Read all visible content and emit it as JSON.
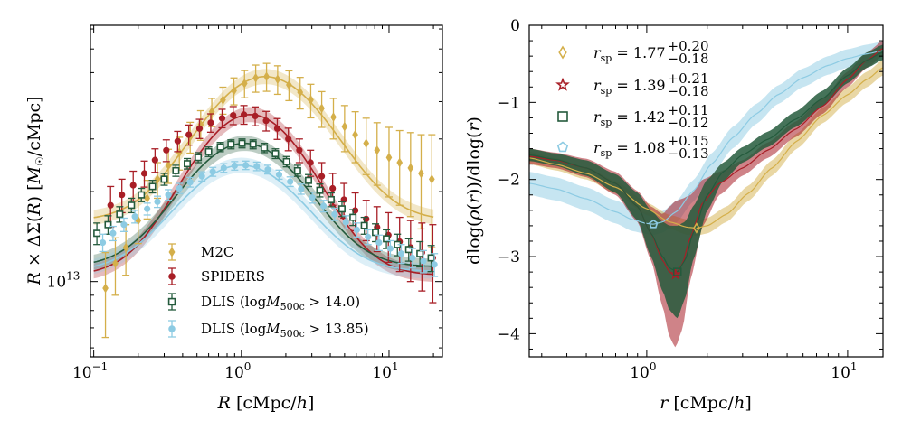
{
  "chart_data": [
    {
      "type": "scatter",
      "panel": "left",
      "xscale": "log",
      "yscale": "log",
      "xlim": [
        0.095,
        23
      ],
      "ylim": [
        5600000000000.0,
        72000000000000.0
      ],
      "xlabel": "R [cMpc/h]",
      "ylabel": "R × ΔΣ(R) [M☉/cMpc]",
      "xticks": [
        {
          "value": 0.1,
          "base": "10",
          "exp": "−1"
        },
        {
          "value": 1,
          "base": "10",
          "exp": "0"
        },
        {
          "value": 10,
          "base": "10",
          "exp": "1"
        }
      ],
      "yticks": [
        {
          "value": 10000000000000.0,
          "base": "10",
          "exp": "13"
        }
      ],
      "legend_position": "lower-center",
      "series": [
        {
          "name": "M2C",
          "label": "M2C",
          "color": "#d4af4a",
          "marker": "diamond",
          "x": [
            0.12,
            0.14,
            0.165,
            0.2,
            0.23,
            0.27,
            0.32,
            0.38,
            0.45,
            0.53,
            0.63,
            0.75,
            0.89,
            1.05,
            1.25,
            1.48,
            1.76,
            2.1,
            2.5,
            2.95,
            3.5,
            4.2,
            5.0,
            5.9,
            7.0,
            8.3,
            10.0,
            11.8,
            14.0,
            16.5,
            19.5
          ],
          "y": [
            9500000000000.0,
            11500000000000.0,
            13000000000000.0,
            16000000000000.0,
            19000000000000.0,
            22000000000000.0,
            24500000000000.0,
            27000000000000.0,
            30500000000000.0,
            33500000000000.0,
            37000000000000.0,
            40500000000000.0,
            43500000000000.0,
            46000000000000.0,
            48000000000000.0,
            48500000000000.0,
            47500000000000.0,
            45500000000000.0,
            43000000000000.0,
            40500000000000.0,
            38000000000000.0,
            35500000000000.0,
            33000000000000.0,
            31000000000000.0,
            29000000000000.0,
            27500000000000.0,
            26000000000000.0,
            25000000000000.0,
            24000000000000.0,
            23000000000000.0,
            22000000000000.0
          ],
          "err": [
            3000000000000.0,
            2500000000000.0,
            2500000000000.0,
            2600000000000.0,
            2800000000000.0,
            3000000000000.0,
            3200000000000.0,
            3400000000000.0,
            3600000000000.0,
            3800000000000.0,
            4000000000000.0,
            4200000000000.0,
            4500000000000.0,
            4800000000000.0,
            5000000000000.0,
            5200000000000.0,
            5200000000000.0,
            5200000000000.0,
            5200000000000.0,
            5200000000000.0,
            5200000000000.0,
            5500000000000.0,
            5800000000000.0,
            6000000000000.0,
            6200000000000.0,
            6500000000000.0,
            6800000000000.0,
            7000000000000.0,
            7500000000000.0,
            8000000000000.0,
            9000000000000.0
          ],
          "model": {
            "amp": 48500000000000.0,
            "peak": 1.45,
            "width": 1.45,
            "floor": 16000000000000.0
          }
        },
        {
          "name": "SPIDERS",
          "label": "SPIDERS",
          "color": "#a81e26",
          "marker": "circle",
          "x": [
            0.13,
            0.155,
            0.185,
            0.22,
            0.26,
            0.31,
            0.37,
            0.44,
            0.52,
            0.62,
            0.74,
            0.88,
            1.04,
            1.24,
            1.47,
            1.75,
            2.08,
            2.47,
            2.94,
            3.5,
            4.15,
            4.95,
            5.9,
            7.0,
            8.3,
            9.9,
            11.8,
            14.0,
            16.7,
            19.8
          ],
          "y": [
            18000000000000.0,
            19500000000000.0,
            21000000000000.0,
            23000000000000.0,
            25500000000000.0,
            27500000000000.0,
            29500000000000.0,
            31000000000000.0,
            32500000000000.0,
            34000000000000.0,
            35200000000000.0,
            36000000000000.0,
            36200000000000.0,
            35800000000000.0,
            34500000000000.0,
            32500000000000.0,
            30000000000000.0,
            27500000000000.0,
            25000000000000.0,
            22500000000000.0,
            20500000000000.0,
            18800000000000.0,
            17300000000000.0,
            16200000000000.0,
            15200000000000.0,
            14300000000000.0,
            13600000000000.0,
            13000000000000.0,
            12500000000000.0,
            12000000000000.0
          ],
          "err": [
            2800000000000.0,
            2500000000000.0,
            2400000000000.0,
            2300000000000.0,
            2300000000000.0,
            2300000000000.0,
            2300000000000.0,
            2400000000000.0,
            2400000000000.0,
            2400000000000.0,
            2500000000000.0,
            2500000000000.0,
            2600000000000.0,
            2600000000000.0,
            2600000000000.0,
            2600000000000.0,
            2600000000000.0,
            2500000000000.0,
            2500000000000.0,
            2500000000000.0,
            2500000000000.0,
            2500000000000.0,
            2500000000000.0,
            2500000000000.0,
            2600000000000.0,
            2700000000000.0,
            2800000000000.0,
            3000000000000.0,
            3200000000000.0,
            3500000000000.0
          ],
          "model": {
            "amp": 36200000000000.0,
            "peak": 1.15,
            "width": 1.3,
            "floor": 10500000000000.0
          }
        },
        {
          "name": "DLIS (logM500c > 14.0)",
          "label": "DLIS (log",
          "label_m": "M",
          "label_sub": "500c",
          "label_tail": " > 14.0)",
          "color": "#245a3c",
          "marker": "square",
          "x": [
            0.105,
            0.125,
            0.15,
            0.18,
            0.21,
            0.25,
            0.3,
            0.36,
            0.43,
            0.51,
            0.6,
            0.72,
            0.85,
            1.01,
            1.2,
            1.43,
            1.7,
            2.02,
            2.4,
            2.85,
            3.4,
            4.05,
            4.8,
            5.7,
            6.8,
            8.1,
            9.6,
            11.4,
            13.6,
            16.2,
            19.3
          ],
          "y": [
            14500000000000.0,
            15500000000000.0,
            16800000000000.0,
            18000000000000.0,
            19500000000000.0,
            20800000000000.0,
            22000000000000.0,
            23500000000000.0,
            24800000000000.0,
            26000000000000.0,
            27200000000000.0,
            28200000000000.0,
            28800000000000.0,
            29000000000000.0,
            28800000000000.0,
            28000000000000.0,
            26800000000000.0,
            25200000000000.0,
            23500000000000.0,
            21800000000000.0,
            20200000000000.0,
            18800000000000.0,
            17500000000000.0,
            16400000000000.0,
            15400000000000.0,
            14600000000000.0,
            13900000000000.0,
            13300000000000.0,
            12800000000000.0,
            12400000000000.0,
            12000000000000.0
          ],
          "err": [
            1200000000000.0,
            1100000000000.0,
            1000000000000.0,
            1000000000000.0,
            1000000000000.0,
            1000000000000.0,
            1000000000000.0,
            1000000000000.0,
            1000000000000.0,
            1000000000000.0,
            1000000000000.0,
            1000000000000.0,
            1000000000000.0,
            1000000000000.0,
            1000000000000.0,
            1000000000000.0,
            1000000000000.0,
            1000000000000.0,
            1000000000000.0,
            1000000000000.0,
            1000000000000.0,
            1000000000000.0,
            1000000000000.0,
            1000000000000.0,
            1000000000000.0,
            1000000000000.0,
            1000000000000.0,
            1100000000000.0,
            1100000000000.0,
            1200000000000.0,
            1200000000000.0
          ],
          "model": {
            "amp": 29000000000000.0,
            "peak": 1.05,
            "width": 1.35,
            "floor": 11200000000000.0
          }
        },
        {
          "name": "DLIS (logM500c > 13.85)",
          "label": "DLIS (log",
          "label_m": "M",
          "label_sub": "500c",
          "label_tail": " > 13.85)",
          "color": "#8dcbe3",
          "marker": "circle",
          "x": [
            0.115,
            0.135,
            0.16,
            0.19,
            0.23,
            0.27,
            0.32,
            0.38,
            0.45,
            0.54,
            0.64,
            0.76,
            0.9,
            1.07,
            1.27,
            1.51,
            1.8,
            2.14,
            2.54,
            3.02,
            3.6,
            4.28,
            5.1,
            6.05,
            7.2,
            8.55,
            10.2,
            12.1,
            14.4,
            17.1,
            20.3
          ],
          "y": [
            13500000000000.0,
            14500000000000.0,
            15500000000000.0,
            16500000000000.0,
            17500000000000.0,
            18500000000000.0,
            19500000000000.0,
            20500000000000.0,
            21500000000000.0,
            22500000000000.0,
            23300000000000.0,
            24000000000000.0,
            24400000000000.0,
            24500000000000.0,
            24300000000000.0,
            23700000000000.0,
            22800000000000.0,
            21600000000000.0,
            20400000000000.0,
            19100000000000.0,
            17900000000000.0,
            16800000000000.0,
            15800000000000.0,
            14900000000000.0,
            14100000000000.0,
            13500000000000.0,
            12900000000000.0,
            12400000000000.0,
            12000000000000.0,
            11700000000000.0,
            11400000000000.0
          ],
          "err": [
            900000000000.0,
            800000000000.0,
            800000000000.0,
            800000000000.0,
            800000000000.0,
            800000000000.0,
            800000000000.0,
            800000000000.0,
            800000000000.0,
            800000000000.0,
            800000000000.0,
            800000000000.0,
            800000000000.0,
            800000000000.0,
            800000000000.0,
            800000000000.0,
            800000000000.0,
            800000000000.0,
            800000000000.0,
            800000000000.0,
            800000000000.0,
            800000000000.0,
            800000000000.0,
            800000000000.0,
            800000000000.0,
            800000000000.0,
            800000000000.0,
            900000000000.0,
            900000000000.0,
            1000000000000.0,
            1000000000000.0
          ],
          "model": {
            "amp": 24500000000000.0,
            "peak": 1.0,
            "width": 1.4,
            "floor": 10800000000000.0
          }
        }
      ]
    },
    {
      "type": "line",
      "panel": "right",
      "xscale": "log",
      "yscale": "linear",
      "xlim": [
        0.26,
        15
      ],
      "ylim": [
        -4.3,
        0
      ],
      "xlabel": "r [cMpc/h]",
      "ylabel": "dlog(ρ(r))/dlog(r)",
      "xticks": [
        {
          "value": 1,
          "base": "10",
          "exp": "0"
        },
        {
          "value": 10,
          "base": "10",
          "exp": "1"
        }
      ],
      "yticks": [
        {
          "value": 0,
          "label": "0"
        },
        {
          "value": -1,
          "label": "−1"
        },
        {
          "value": -2,
          "label": "−2"
        },
        {
          "value": -3,
          "label": "−3"
        },
        {
          "value": -4,
          "label": "−4"
        }
      ],
      "legend_position": "upper-left",
      "series": [
        {
          "name": "M2C",
          "color": "#d4af4a",
          "marker": "diamond",
          "r_sp": 1.77,
          "err_plus": "+0.20",
          "err_minus": "−0.18",
          "r_sp_label": "= 1.77",
          "x": [
            0.26,
            0.35,
            0.5,
            0.7,
            1.0,
            1.3,
            1.6,
            1.77,
            2.0,
            2.5,
            3.2,
            4.2,
            5.6,
            7.5,
            10,
            12.5,
            15
          ],
          "y": [
            -1.72,
            -1.8,
            -1.92,
            -2.1,
            -2.38,
            -2.55,
            -2.62,
            -2.63,
            -2.6,
            -2.45,
            -2.18,
            -1.85,
            -1.5,
            -1.17,
            -0.9,
            -0.7,
            -0.55
          ],
          "band": [
            0.08,
            0.08,
            0.08,
            0.08,
            0.08,
            0.09,
            0.1,
            0.1,
            0.1,
            0.1,
            0.1,
            0.1,
            0.1,
            0.1,
            0.1,
            0.1,
            0.1
          ]
        },
        {
          "name": "SPIDERS",
          "color": "#a81e26",
          "marker": "star",
          "r_sp": 1.39,
          "err_plus": "+0.21",
          "err_minus": "−0.18",
          "r_sp_label": "= 1.39",
          "x": [
            0.26,
            0.35,
            0.5,
            0.7,
            0.9,
            1.05,
            1.2,
            1.3,
            1.39,
            1.5,
            1.65,
            1.9,
            2.3,
            3.0,
            4.0,
            5.5,
            7.5,
            10,
            12.5,
            15
          ],
          "y": [
            -1.7,
            -1.75,
            -1.85,
            -2.05,
            -2.35,
            -2.7,
            -3.05,
            -3.2,
            -3.23,
            -3.1,
            -2.75,
            -2.3,
            -2.05,
            -1.85,
            -1.62,
            -1.35,
            -1.05,
            -0.7,
            -0.45,
            -0.3
          ],
          "band": [
            0.1,
            0.1,
            0.12,
            0.15,
            0.2,
            0.35,
            0.6,
            0.85,
            0.95,
            0.85,
            0.55,
            0.3,
            0.15,
            0.1,
            0.1,
            0.1,
            0.1,
            0.1,
            0.1,
            0.1
          ]
        },
        {
          "name": "DLIS (logM500c > 14.0)",
          "color": "#245a3c",
          "marker": "square",
          "r_sp": 1.42,
          "err_plus": "+0.11",
          "err_minus": "−0.12",
          "r_sp_label": "= 1.42",
          "x": [
            0.26,
            0.35,
            0.5,
            0.7,
            0.9,
            1.05,
            1.2,
            1.3,
            1.42,
            1.55,
            1.7,
            2.0,
            2.4,
            3.0,
            4.0,
            5.5,
            7.5,
            10,
            12.5,
            15
          ],
          "y": [
            -1.68,
            -1.74,
            -1.85,
            -2.05,
            -2.35,
            -2.7,
            -3.0,
            -3.15,
            -3.2,
            -3.05,
            -2.7,
            -2.2,
            -1.9,
            -1.68,
            -1.48,
            -1.22,
            -0.95,
            -0.65,
            -0.45,
            -0.35
          ],
          "band": [
            0.08,
            0.08,
            0.1,
            0.12,
            0.18,
            0.3,
            0.45,
            0.55,
            0.6,
            0.5,
            0.35,
            0.2,
            0.12,
            0.1,
            0.1,
            0.1,
            0.1,
            0.1,
            0.1,
            0.1
          ]
        },
        {
          "name": "DLIS (logM500c > 13.85)",
          "color": "#8dcbe3",
          "marker": "pentagon",
          "r_sp": 1.08,
          "err_plus": "+0.15",
          "err_minus": "−0.13",
          "r_sp_label": "= 1.08",
          "x": [
            0.26,
            0.35,
            0.5,
            0.7,
            0.85,
            1.0,
            1.08,
            1.2,
            1.4,
            1.7,
            2.1,
            2.7,
            3.5,
            4.5,
            6.0,
            8.0,
            10,
            12.5,
            15
          ],
          "y": [
            -2.05,
            -2.12,
            -2.25,
            -2.42,
            -2.52,
            -2.57,
            -2.58,
            -2.55,
            -2.42,
            -2.15,
            -1.8,
            -1.45,
            -1.15,
            -0.9,
            -0.68,
            -0.52,
            -0.43,
            -0.37,
            -0.33
          ],
          "band": [
            0.15,
            0.15,
            0.15,
            0.15,
            0.15,
            0.14,
            0.14,
            0.14,
            0.14,
            0.14,
            0.14,
            0.14,
            0.13,
            0.12,
            0.12,
            0.12,
            0.12,
            0.12,
            0.12
          ]
        }
      ]
    }
  ],
  "legend_right_prefix": "r",
  "legend_right_sub": "sp"
}
